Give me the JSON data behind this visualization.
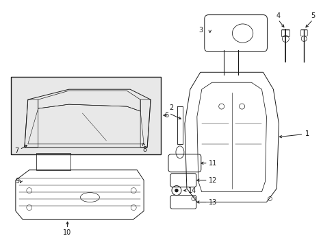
{
  "background_color": "#ffffff",
  "line_color": "#1a1a1a",
  "label_color": "#000000",
  "figsize": [
    4.89,
    3.6
  ],
  "dpi": 100,
  "gray_fill": "#e8e8e8",
  "font_size": 7.0
}
